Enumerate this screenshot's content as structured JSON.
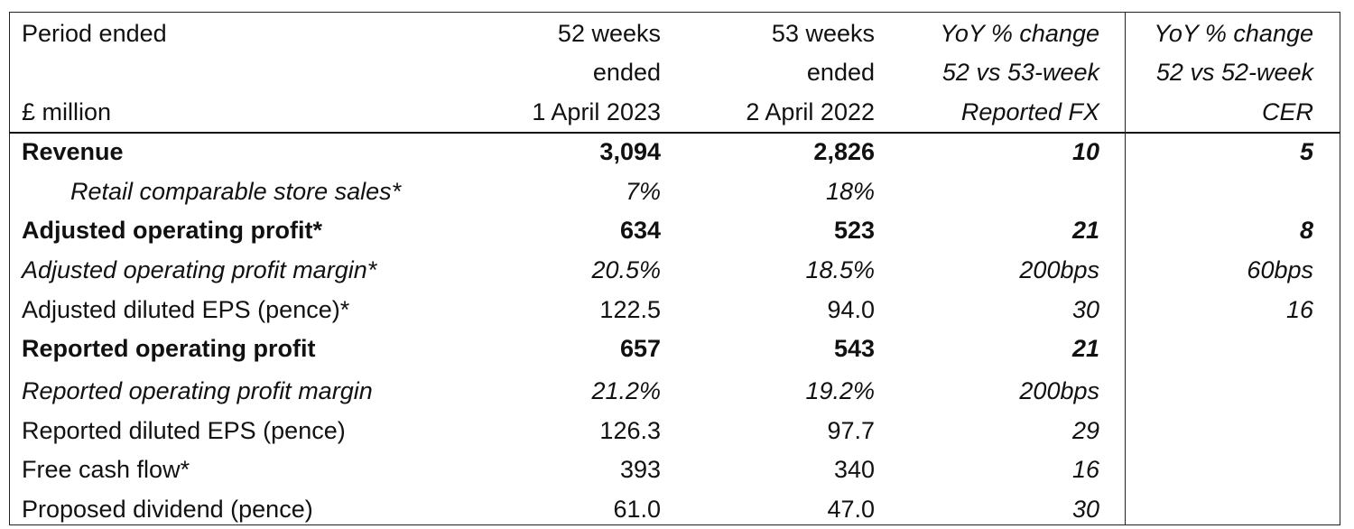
{
  "header": {
    "row1": [
      "Period ended",
      "52 weeks",
      "53 weeks",
      "YoY % change",
      "YoY % change"
    ],
    "row2": [
      "",
      "ended",
      "ended",
      "52 vs 53-week",
      "52 vs 52-week"
    ],
    "row3": [
      "£ million",
      "1 April 2023",
      "2 April 2022",
      "Reported FX",
      "CER"
    ]
  },
  "rows": [
    {
      "label": "Revenue",
      "fy23": "3,094",
      "fy22": "2,826",
      "yoy_reported": "10",
      "yoy_cer": "5"
    },
    {
      "label": "Retail comparable store sales*",
      "fy23": "7%",
      "fy22": "18%",
      "yoy_reported": "",
      "yoy_cer": ""
    },
    {
      "label": "Adjusted operating profit*",
      "fy23": "634",
      "fy22": "523",
      "yoy_reported": "21",
      "yoy_cer": "8"
    },
    {
      "label": "Adjusted operating profit margin*",
      "fy23": "20.5%",
      "fy22": "18.5%",
      "yoy_reported": "200bps",
      "yoy_cer": "60bps"
    },
    {
      "label": "Adjusted diluted EPS (pence)*",
      "fy23": "122.5",
      "fy22": "94.0",
      "yoy_reported": "30",
      "yoy_cer": "16"
    },
    {
      "label": "Reported operating profit",
      "fy23": "657",
      "fy22": "543",
      "yoy_reported": "21",
      "yoy_cer": ""
    },
    {
      "label": "Reported operating profit margin",
      "fy23": "21.2%",
      "fy22": "19.2%",
      "yoy_reported": "200bps",
      "yoy_cer": ""
    },
    {
      "label": "Reported diluted EPS (pence)",
      "fy23": "126.3",
      "fy22": "97.7",
      "yoy_reported": "29",
      "yoy_cer": ""
    },
    {
      "label": "Free cash flow*",
      "fy23": "393",
      "fy22": "340",
      "yoy_reported": "16",
      "yoy_cer": ""
    },
    {
      "label": "Proposed dividend (pence)",
      "fy23": "61.0",
      "fy22": "47.0",
      "yoy_reported": "30",
      "yoy_cer": ""
    }
  ]
}
